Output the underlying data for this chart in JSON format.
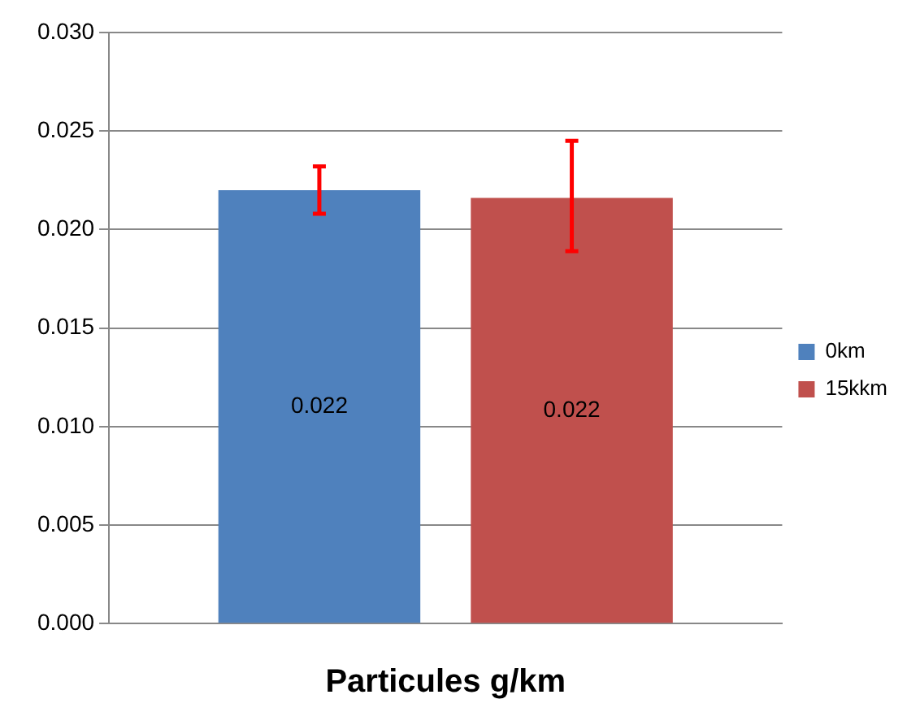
{
  "chart_data": {
    "type": "bar",
    "xlabel": "Particules g/km",
    "categories": [
      null
    ],
    "series": [
      {
        "name": "0km",
        "color": "#4f81bd",
        "values": [
          0.022
        ],
        "errors": [
          [
            0.0208,
            0.0232
          ]
        ],
        "value_labels": [
          "0.022"
        ]
      },
      {
        "name": "15kkm",
        "color": "#c0504d",
        "values": [
          0.0216
        ],
        "errors": [
          [
            0.0189,
            0.0245
          ]
        ],
        "value_labels": [
          "0.022"
        ]
      }
    ],
    "ylim": [
      0,
      0.03
    ],
    "yticks": [
      {
        "value": 0,
        "label": "0.000"
      },
      {
        "value": 0.005,
        "label": "0.005"
      },
      {
        "value": 0.01,
        "label": "0.010"
      },
      {
        "value": 0.015,
        "label": "0.015"
      },
      {
        "value": 0.02,
        "label": "0.020"
      },
      {
        "value": 0.025,
        "label": "0.025"
      },
      {
        "value": 0.03,
        "label": "0.030"
      }
    ],
    "grid": "y",
    "legend": "right"
  }
}
